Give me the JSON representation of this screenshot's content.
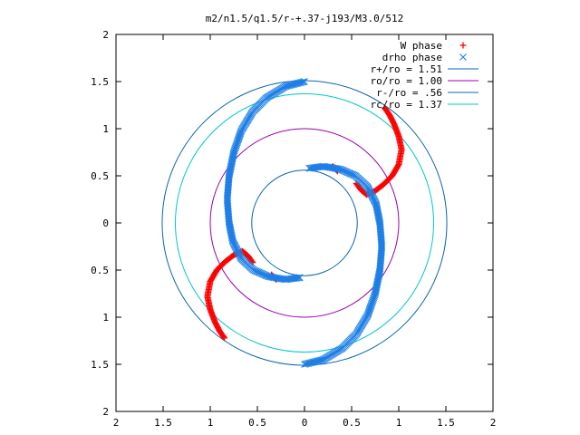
{
  "chart_data": {
    "type": "scatter",
    "title": "m2/n1.5/q1.5/r-+.37-j193/M3.0/512",
    "xlabel": "",
    "ylabel": "",
    "xlim": [
      -2,
      2
    ],
    "ylim": [
      -2,
      2
    ],
    "x_tick_values": [
      -2,
      -1.5,
      -1,
      -0.5,
      0,
      0.5,
      1,
      1.5,
      2
    ],
    "x_tick_labels": [
      "2",
      "1.5",
      "1",
      "0.5",
      "0",
      "0.5",
      "1",
      "1.5",
      "2"
    ],
    "y_tick_values": [
      2,
      1.5,
      1,
      0.5,
      0,
      -0.5,
      -1,
      -1.5,
      -2
    ],
    "y_tick_labels": [
      "2",
      "1.5",
      "1",
      "0.5",
      "0",
      "0.5",
      "1",
      "1.5",
      "2"
    ],
    "grid": false,
    "legend_position": "top-right",
    "series": [
      {
        "name": "W phase",
        "marker": "+",
        "color": "#ff0000",
        "points": [
          [
            0.85,
            1.22
          ],
          [
            0.9,
            1.15
          ],
          [
            0.95,
            1.05
          ],
          [
            1.0,
            0.92
          ],
          [
            1.03,
            0.78
          ],
          [
            1.0,
            0.62
          ],
          [
            0.93,
            0.5
          ],
          [
            0.84,
            0.41
          ],
          [
            0.75,
            0.34
          ],
          [
            0.66,
            0.3
          ],
          [
            0.6,
            0.35
          ],
          [
            0.55,
            0.42
          ],
          [
            -0.85,
            -1.22
          ],
          [
            -0.9,
            -1.15
          ],
          [
            -0.95,
            -1.05
          ],
          [
            -1.0,
            -0.92
          ],
          [
            -1.03,
            -0.78
          ],
          [
            -1.0,
            -0.62
          ],
          [
            -0.93,
            -0.5
          ],
          [
            -0.84,
            -0.41
          ],
          [
            -0.75,
            -0.34
          ],
          [
            -0.66,
            -0.3
          ],
          [
            -0.6,
            -0.35
          ],
          [
            -0.55,
            -0.42
          ],
          [
            0.3,
            0.6
          ],
          [
            0.35,
            0.55
          ],
          [
            -0.3,
            -0.6
          ],
          [
            -0.35,
            -0.55
          ]
        ]
      },
      {
        "name": "drho phase",
        "marker": "x",
        "color": "#1e7fe6",
        "points": [
          [
            0.0,
            1.5
          ],
          [
            -0.2,
            1.45
          ],
          [
            -0.4,
            1.33
          ],
          [
            -0.55,
            1.18
          ],
          [
            -0.67,
            0.98
          ],
          [
            -0.75,
            0.75
          ],
          [
            -0.8,
            0.5
          ],
          [
            -0.82,
            0.25
          ],
          [
            -0.8,
            0.0
          ],
          [
            -0.76,
            -0.2
          ],
          [
            -0.67,
            -0.38
          ],
          [
            -0.54,
            -0.5
          ],
          [
            -0.38,
            -0.57
          ],
          [
            -0.2,
            -0.6
          ],
          [
            -0.05,
            -0.58
          ],
          [
            0.0,
            -1.5
          ],
          [
            0.2,
            -1.45
          ],
          [
            0.4,
            -1.33
          ],
          [
            0.55,
            -1.18
          ],
          [
            0.67,
            -0.98
          ],
          [
            0.75,
            -0.75
          ],
          [
            0.8,
            -0.5
          ],
          [
            0.82,
            -0.25
          ],
          [
            0.8,
            0.0
          ],
          [
            0.76,
            0.2
          ],
          [
            0.67,
            0.38
          ],
          [
            0.54,
            0.5
          ],
          [
            0.38,
            0.57
          ],
          [
            0.2,
            0.6
          ],
          [
            0.05,
            0.58
          ]
        ]
      },
      {
        "name": "r+/ro = 1.51",
        "type": "circle",
        "radius": 1.51,
        "color": "#0a64b4"
      },
      {
        "name": "ro/ro = 1.00",
        "type": "circle",
        "radius": 1.0,
        "color": "#9900b3"
      },
      {
        "name": "r-/ro = .56",
        "type": "circle",
        "radius": 0.56,
        "color": "#0a64b4"
      },
      {
        "name": "rc/ro = 1.37",
        "type": "circle",
        "radius": 1.37,
        "color": "#00c8c8"
      }
    ]
  }
}
